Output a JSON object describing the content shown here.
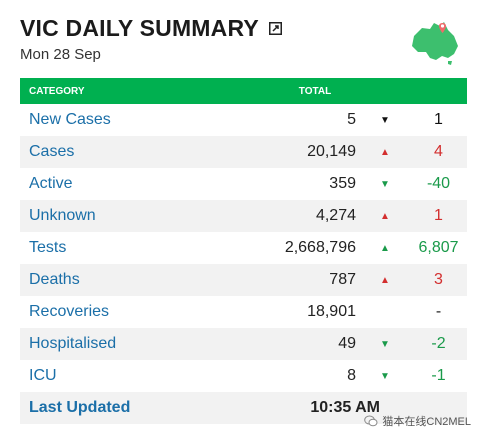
{
  "header": {
    "title": "VIC DAILY SUMMARY",
    "date": "Mon 28 Sep",
    "icons": {
      "external_link": "external-link-icon",
      "map": "australia-map-icon"
    },
    "colors": {
      "accent": "#00b050",
      "map_fill": "#3dbf6e",
      "map_pin": "#f06a6a"
    }
  },
  "table": {
    "headers": {
      "category": "CATEGORY",
      "total": "TOTAL"
    },
    "rows": [
      {
        "category": "New Cases",
        "total": "5",
        "trend": "down",
        "arrow": "▼",
        "change": "1",
        "change_color": "black"
      },
      {
        "category": "Cases",
        "total": "20,149",
        "trend": "up",
        "arrow": "▲",
        "change": "4",
        "change_color": "red"
      },
      {
        "category": "Active",
        "total": "359",
        "trend": "down",
        "arrow": "▼",
        "change": "-40",
        "change_color": "green"
      },
      {
        "category": "Unknown",
        "total": "4,274",
        "trend": "up",
        "arrow": "▲",
        "change": "1",
        "change_color": "red"
      },
      {
        "category": "Tests",
        "total": "2,668,796",
        "trend": "up",
        "arrow": "▲",
        "change": "6,807",
        "change_color": "green"
      },
      {
        "category": "Deaths",
        "total": "787",
        "trend": "up",
        "arrow": "▲",
        "change": "3",
        "change_color": "red"
      },
      {
        "category": "Recoveries",
        "total": "18,901",
        "trend": "none",
        "arrow": "",
        "change": "-",
        "change_color": "black"
      },
      {
        "category": "Hospitalised",
        "total": "49",
        "trend": "down",
        "arrow": "▼",
        "change": "-2",
        "change_color": "green"
      },
      {
        "category": "ICU",
        "total": "8",
        "trend": "down",
        "arrow": "▼",
        "change": "-1",
        "change_color": "green"
      }
    ],
    "last_updated": {
      "label": "Last Updated",
      "value": "10:35 AM"
    }
  },
  "watermark": {
    "text": "猫本在线CN2MEL"
  }
}
